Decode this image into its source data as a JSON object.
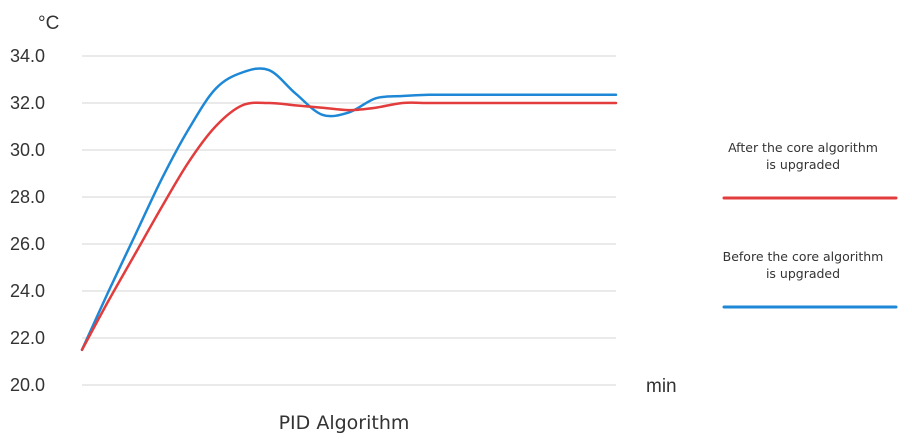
{
  "chart_data": {
    "type": "line",
    "title": "",
    "xlabel": "PID Algorithm",
    "x_unit": "min",
    "y_unit": "°C",
    "ylim": [
      20.0,
      34.0
    ],
    "y_ticks": [
      "20.0",
      "22.0",
      "24.0",
      "26.0",
      "28.0",
      "30.0",
      "32.0",
      "34.0"
    ],
    "grid": "horizontal",
    "legend_position": "right",
    "x": [
      0,
      5,
      10,
      15,
      20,
      25,
      30,
      35,
      40,
      45,
      50,
      55,
      60,
      65,
      70,
      75,
      80,
      85,
      90,
      95,
      100
    ],
    "series": [
      {
        "name": "After the core algorithm is upgraded",
        "color": "#e23c3c",
        "values": [
          21.5,
          23.6,
          25.6,
          27.6,
          29.5,
          31.0,
          31.9,
          32.0,
          31.9,
          31.8,
          31.7,
          31.8,
          32.0,
          32.0,
          32.0,
          32.0,
          32.0,
          32.0,
          32.0,
          32.0,
          32.0
        ]
      },
      {
        "name": "Before the core algorithm is upgraded",
        "color": "#1e88d6",
        "values": [
          21.5,
          24.0,
          26.4,
          28.8,
          30.9,
          32.6,
          33.3,
          33.4,
          32.4,
          31.5,
          31.6,
          32.2,
          32.3,
          32.35,
          32.35,
          32.35,
          32.35,
          32.35,
          32.35,
          32.35,
          32.35
        ]
      }
    ]
  }
}
